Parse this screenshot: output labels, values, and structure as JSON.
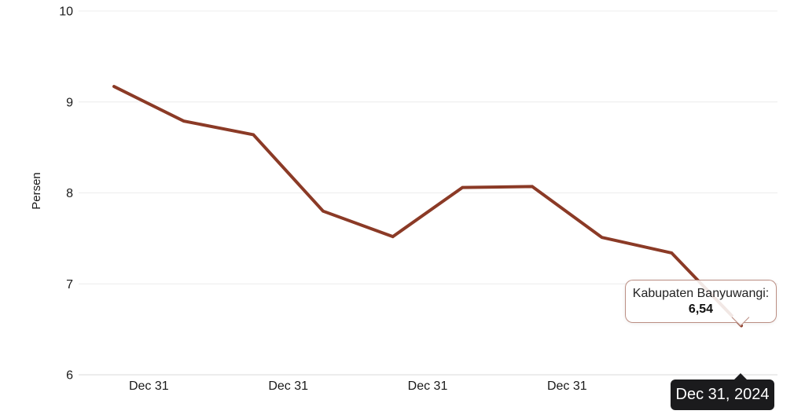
{
  "chart_data": {
    "type": "line",
    "title": "",
    "xlabel": "",
    "ylabel": "Persen",
    "ylim": [
      6,
      10
    ],
    "y_ticks": [
      6,
      7,
      8,
      9,
      10
    ],
    "grid": true,
    "legend": "none",
    "x_tick_labels": [
      "Dec 31",
      "Dec 31",
      "Dec 31",
      "Dec 31",
      "Dec 31"
    ],
    "series": [
      {
        "name": "Kabupaten Banyuwangi",
        "values": [
          9.17,
          8.79,
          8.64,
          7.8,
          7.52,
          8.06,
          8.07,
          7.51,
          7.34,
          6.54
        ]
      }
    ]
  },
  "tooltip": {
    "label": "Kabupaten Banyuwangi:",
    "value": "6,54"
  },
  "axis_tooltip": {
    "label": "Dec 31, 2024"
  },
  "colors": {
    "line": "#8B3A26",
    "grid": "#ececec",
    "axis": "#d9d9d9",
    "text": "#1a1a1a",
    "tooltip_border": "#965240",
    "axis_tooltip_bg": "#1b1b1d",
    "axis_tooltip_text": "#ffffff"
  }
}
